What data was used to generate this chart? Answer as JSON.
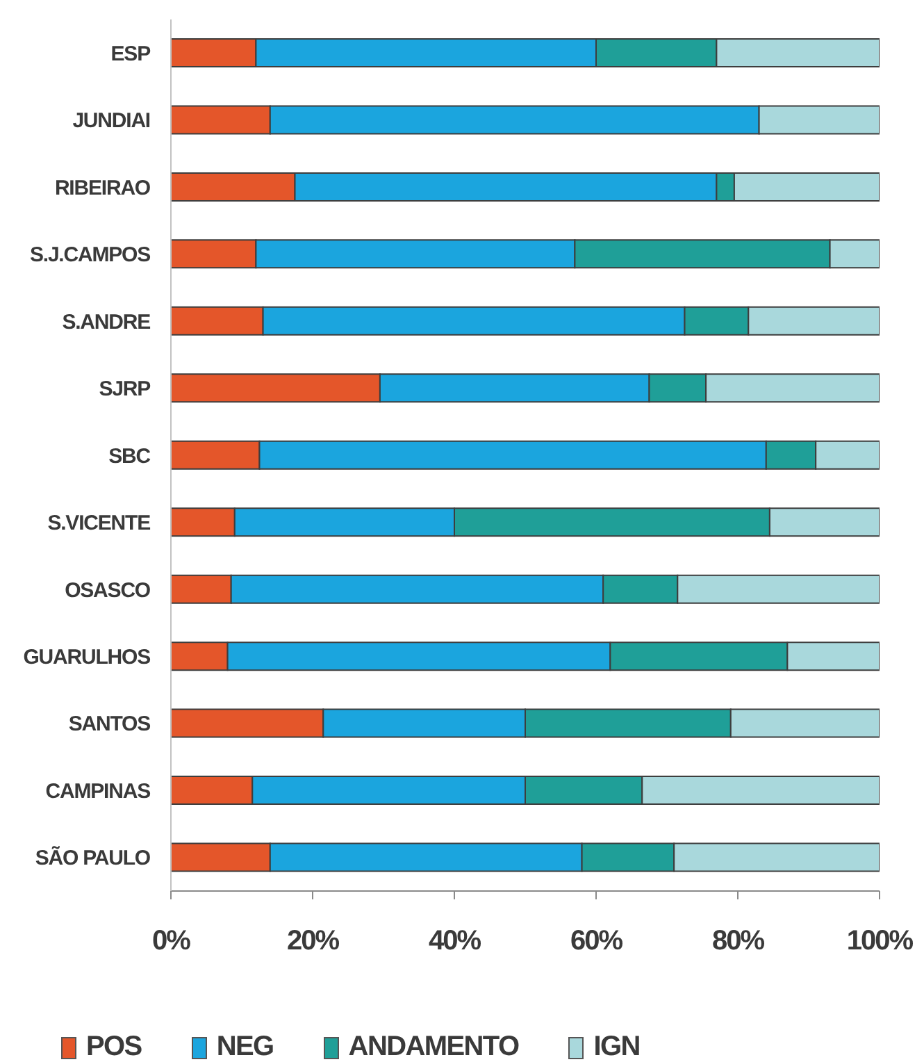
{
  "chart_data": {
    "type": "bar",
    "orientation": "horizontal",
    "stacked": true,
    "categories": [
      "ESP",
      "JUNDIAI",
      "RIBEIRAO",
      "S.J.CAMPOS",
      "S.ANDRE",
      "SJRP",
      "SBC",
      "S.VICENTE",
      "OSASCO",
      "GUARULHOS",
      "SANTOS",
      "CAMPINAS",
      "SÃO PAULO"
    ],
    "series": [
      {
        "name": "POS",
        "color": "#e4562a",
        "values": [
          12,
          14,
          17.5,
          12,
          13,
          29.5,
          12.5,
          9,
          8.5,
          8,
          21.5,
          11.5,
          14
        ]
      },
      {
        "name": "NEG",
        "color": "#1ba5de",
        "values": [
          48,
          69,
          59.5,
          45,
          59.5,
          38,
          71.5,
          31,
          52.5,
          54,
          28.5,
          38.5,
          44
        ]
      },
      {
        "name": "ANDAMENTO",
        "color": "#1f9f98",
        "values": [
          17,
          0,
          2.5,
          36,
          9,
          8,
          7,
          44.5,
          10.5,
          25,
          29,
          16.5,
          13
        ]
      },
      {
        "name": "IGN",
        "color": "#a9d8dc",
        "values": [
          23,
          17,
          20.5,
          7,
          18.5,
          24.5,
          9,
          15.5,
          28.5,
          13,
          21,
          33.5,
          29
        ]
      }
    ],
    "xlim": [
      0,
      100
    ],
    "xticks": [
      {
        "value": 0,
        "label": "0%"
      },
      {
        "value": 20,
        "label": "20%"
      },
      {
        "value": 40,
        "label": "40%"
      },
      {
        "value": 60,
        "label": "60%"
      },
      {
        "value": 80,
        "label": "80%"
      },
      {
        "value": 100,
        "label": "100%"
      }
    ],
    "legend": "bottom"
  }
}
